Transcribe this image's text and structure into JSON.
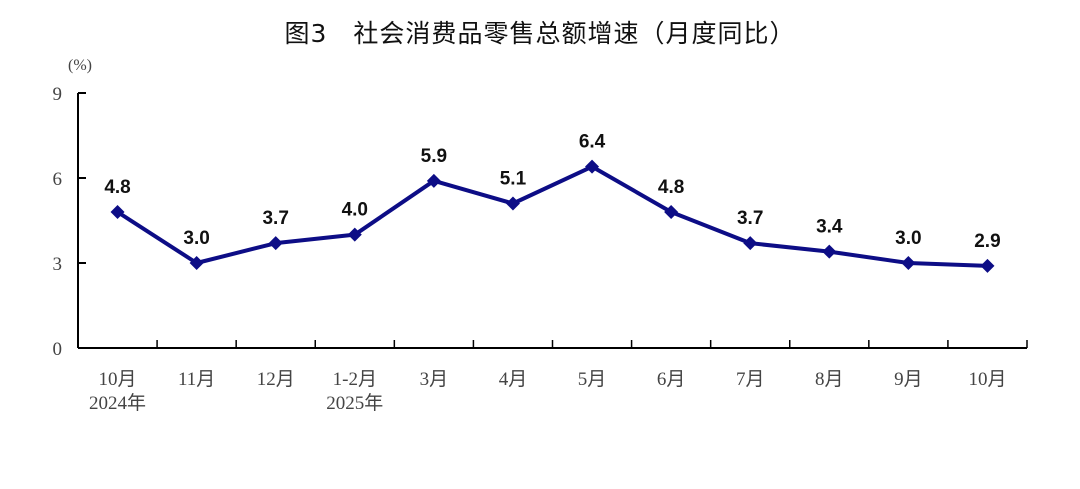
{
  "chart_data": {
    "type": "line",
    "title": "图3　社会消费品零售总额增速（月度同比）",
    "ylabel": "(%)",
    "xlabel": "",
    "ylim": [
      0,
      9
    ],
    "yticks": [
      "0",
      "3",
      "6",
      "9"
    ],
    "categories": [
      "10月\n2024年",
      "11月",
      "12月",
      "1-2月\n2025年",
      "3月",
      "4月",
      "5月",
      "6月",
      "7月",
      "8月",
      "9月",
      "10月"
    ],
    "values": [
      4.8,
      3.0,
      3.7,
      4.0,
      5.9,
      5.1,
      6.4,
      4.8,
      3.7,
      3.4,
      3.0,
      2.9
    ],
    "data_labels": [
      "4.8",
      "3.0",
      "3.7",
      "4.0",
      "5.9",
      "5.1",
      "6.4",
      "4.8",
      "3.7",
      "3.4",
      "3.0",
      "2.9"
    ],
    "grid": false,
    "legend": "none",
    "marker": "diamond",
    "line_color": "#0d0d86"
  }
}
